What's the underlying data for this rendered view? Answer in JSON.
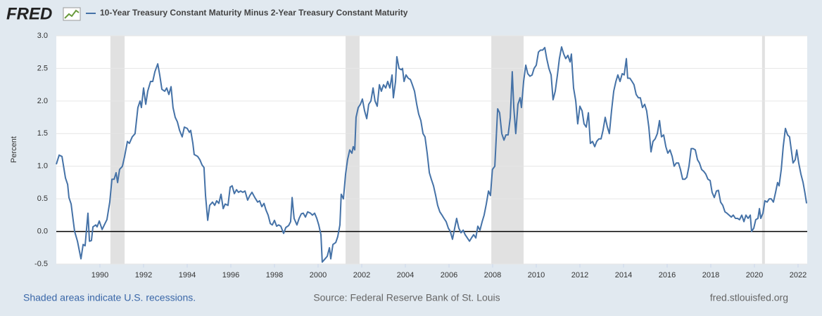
{
  "header": {
    "logo": "FRED"
  },
  "chart_data": {
    "type": "line",
    "y_label": "Percent",
    "series": [
      {
        "name": "10-Year Treasury Constant Maturity Minus 2-Year Treasury Constant Maturity",
        "color": "#4572a7",
        "values": [
          1.03,
          1.17,
          1.15,
          0.82,
          0.72,
          0.52,
          0.42,
          0.18,
          0.0,
          -0.15,
          -0.42,
          -0.2,
          -0.22,
          0.28,
          -0.15,
          -0.14,
          0.07,
          0.1,
          0.07,
          0.16,
          0.03,
          0.12,
          0.18,
          0.45,
          0.8,
          0.8,
          0.9,
          0.75,
          0.95,
          1.0,
          1.15,
          1.38,
          1.35,
          1.45,
          1.5,
          1.9,
          2.0,
          1.9,
          2.2,
          1.95,
          2.15,
          2.3,
          2.3,
          2.45,
          2.57,
          2.4,
          2.18,
          2.15,
          2.2,
          2.1,
          2.22,
          1.9,
          1.75,
          1.68,
          1.55,
          1.45,
          1.6,
          1.58,
          1.52,
          1.55,
          1.35,
          1.18,
          1.15,
          1.1,
          1.02,
          0.98,
          0.55,
          0.17,
          0.4,
          0.45,
          0.4,
          0.47,
          0.43,
          0.57,
          0.35,
          0.42,
          0.4,
          0.68,
          0.7,
          0.58,
          0.64,
          0.6,
          0.62,
          0.6,
          0.62,
          0.48,
          0.55,
          0.6,
          0.52,
          0.45,
          0.47,
          0.38,
          0.43,
          0.33,
          0.25,
          0.12,
          0.1,
          0.17,
          0.08,
          0.1,
          0.08,
          -0.03,
          0.06,
          0.09,
          0.15,
          0.52,
          0.2,
          0.1,
          0.2,
          0.27,
          0.28,
          0.22,
          0.3,
          0.28,
          0.25,
          0.28,
          0.2,
          0.1,
          -0.05,
          -0.47,
          -0.42,
          -0.38,
          -0.25,
          -0.42,
          -0.2,
          -0.17,
          -0.08,
          0.1,
          0.57,
          0.5,
          0.88,
          1.1,
          1.25,
          1.2,
          1.3,
          1.25,
          1.75,
          1.9,
          1.95,
          2.03,
          1.85,
          1.73,
          1.95,
          2.0,
          2.2,
          2.0,
          1.92,
          2.25,
          2.15,
          2.25,
          2.2,
          2.3,
          2.2,
          2.4,
          2.05,
          2.3,
          2.68,
          2.5,
          2.48,
          2.5,
          2.3,
          2.4,
          2.35,
          2.33,
          2.25,
          2.15,
          1.95,
          1.8,
          1.7,
          1.5,
          1.45,
          1.2,
          0.9,
          0.8,
          0.7,
          0.55,
          0.4,
          0.3,
          0.25,
          0.2,
          0.15,
          0.05,
          0.0,
          -0.12,
          0.05,
          0.2,
          0.05,
          -0.02,
          0.02,
          -0.05,
          -0.1,
          -0.15,
          -0.1,
          -0.05,
          -0.1,
          0.08,
          0.02,
          0.15,
          0.25,
          0.42,
          0.62,
          0.55,
          0.95,
          1.0,
          1.4,
          1.88,
          1.82,
          1.5,
          1.4,
          1.48,
          1.48,
          1.75,
          2.45,
          1.9,
          1.5,
          1.95,
          2.05,
          1.9,
          2.3,
          2.55,
          2.42,
          2.38,
          2.4,
          2.5,
          2.55,
          2.75,
          2.78,
          2.78,
          2.82,
          2.65,
          2.5,
          2.4,
          2.02,
          2.15,
          2.4,
          2.65,
          2.83,
          2.72,
          2.65,
          2.7,
          2.6,
          2.72,
          2.2,
          2.0,
          1.65,
          1.92,
          1.85,
          1.65,
          1.6,
          1.82,
          1.35,
          1.38,
          1.3,
          1.38,
          1.42,
          1.42,
          1.55,
          1.75,
          1.6,
          1.5,
          1.85,
          2.15,
          2.3,
          2.4,
          2.3,
          2.42,
          2.4,
          2.65,
          2.35,
          2.35,
          2.3,
          2.25,
          2.1,
          2.05,
          2.05,
          1.9,
          1.95,
          1.85,
          1.6,
          1.22,
          1.38,
          1.42,
          1.5,
          1.7,
          1.45,
          1.48,
          1.3,
          1.2,
          1.25,
          1.15,
          1.0,
          1.05,
          1.05,
          0.95,
          0.8,
          0.8,
          0.83,
          1.0,
          1.27,
          1.27,
          1.25,
          1.1,
          1.05,
          0.95,
          0.92,
          0.88,
          0.8,
          0.78,
          0.6,
          0.52,
          0.62,
          0.63,
          0.45,
          0.4,
          0.3,
          0.28,
          0.25,
          0.22,
          0.25,
          0.2,
          0.2,
          0.18,
          0.25,
          0.15,
          0.25,
          0.2,
          0.25,
          0.0,
          0.05,
          0.18,
          0.2,
          0.35,
          0.2,
          0.28,
          0.47,
          0.45,
          0.5,
          0.5,
          0.45,
          0.6,
          0.75,
          0.7,
          0.95,
          1.3,
          1.58,
          1.48,
          1.45,
          1.2,
          1.05,
          1.1,
          1.25,
          1.05,
          0.88,
          0.75,
          0.58,
          0.43
        ]
      }
    ],
    "x": [
      1988.0,
      1988.13,
      1988.26,
      1988.42,
      1988.52,
      1988.58,
      1988.68,
      1988.77,
      1988.84,
      1988.97,
      1989.13,
      1989.23,
      1989.32,
      1989.45,
      1989.52,
      1989.61,
      1989.68,
      1989.81,
      1989.87,
      1989.97,
      1990.1,
      1990.23,
      1990.32,
      1990.45,
      1990.55,
      1990.65,
      1990.74,
      1990.81,
      1990.9,
      1991.03,
      1991.13,
      1991.26,
      1991.35,
      1991.48,
      1991.61,
      1991.74,
      1991.84,
      1991.9,
      1992.0,
      1992.1,
      1992.19,
      1992.32,
      1992.42,
      1992.52,
      1992.65,
      1992.74,
      1992.84,
      1992.97,
      1993.06,
      1993.16,
      1993.26,
      1993.35,
      1993.45,
      1993.55,
      1993.65,
      1993.77,
      1993.87,
      1994.0,
      1994.1,
      1994.16,
      1994.26,
      1994.32,
      1994.48,
      1994.58,
      1994.68,
      1994.77,
      1994.84,
      1994.94,
      1995.03,
      1995.16,
      1995.26,
      1995.35,
      1995.45,
      1995.55,
      1995.65,
      1995.74,
      1995.87,
      1995.97,
      1996.06,
      1996.16,
      1996.26,
      1996.35,
      1996.45,
      1996.55,
      1996.65,
      1996.77,
      1996.87,
      1996.97,
      1997.1,
      1997.23,
      1997.32,
      1997.42,
      1997.52,
      1997.61,
      1997.71,
      1997.81,
      1997.9,
      1998.0,
      1998.1,
      1998.19,
      1998.29,
      1998.42,
      1998.52,
      1998.65,
      1998.74,
      1998.81,
      1998.9,
      1999.03,
      1999.13,
      1999.23,
      1999.32,
      1999.42,
      1999.52,
      1999.65,
      1999.74,
      1999.84,
      1999.94,
      2000.03,
      2000.13,
      2000.19,
      2000.32,
      2000.42,
      2000.52,
      2000.58,
      2000.68,
      2000.81,
      2000.9,
      2001.0,
      2001.06,
      2001.16,
      2001.26,
      2001.35,
      2001.45,
      2001.55,
      2001.61,
      2001.68,
      2001.74,
      2001.84,
      2001.94,
      2002.03,
      2002.13,
      2002.23,
      2002.32,
      2002.42,
      2002.52,
      2002.61,
      2002.71,
      2002.81,
      2002.9,
      2003.0,
      2003.1,
      2003.19,
      2003.29,
      2003.39,
      2003.45,
      2003.55,
      2003.61,
      2003.71,
      2003.81,
      2003.87,
      2003.94,
      2004.03,
      2004.13,
      2004.23,
      2004.32,
      2004.42,
      2004.52,
      2004.61,
      2004.71,
      2004.81,
      2004.9,
      2005.0,
      2005.1,
      2005.19,
      2005.29,
      2005.39,
      2005.48,
      2005.58,
      2005.68,
      2005.77,
      2005.87,
      2005.97,
      2006.06,
      2006.16,
      2006.26,
      2006.35,
      2006.45,
      2006.55,
      2006.65,
      2006.74,
      2006.84,
      2006.94,
      2007.03,
      2007.13,
      2007.23,
      2007.32,
      2007.42,
      2007.52,
      2007.61,
      2007.71,
      2007.81,
      2007.9,
      2007.99,
      2008.1,
      2008.16,
      2008.23,
      2008.32,
      2008.42,
      2008.52,
      2008.61,
      2008.71,
      2008.81,
      2008.9,
      2008.97,
      2009.06,
      2009.16,
      2009.26,
      2009.32,
      2009.42,
      2009.52,
      2009.61,
      2009.71,
      2009.81,
      2009.9,
      2010.0,
      2010.1,
      2010.19,
      2010.29,
      2010.39,
      2010.48,
      2010.58,
      2010.68,
      2010.77,
      2010.87,
      2010.97,
      2011.06,
      2011.16,
      2011.26,
      2011.35,
      2011.45,
      2011.55,
      2011.61,
      2011.71,
      2011.81,
      2011.9,
      2012.0,
      2012.1,
      2012.19,
      2012.29,
      2012.39,
      2012.48,
      2012.58,
      2012.68,
      2012.77,
      2012.87,
      2012.97,
      2013.06,
      2013.16,
      2013.26,
      2013.35,
      2013.45,
      2013.55,
      2013.65,
      2013.74,
      2013.84,
      2013.94,
      2014.03,
      2014.13,
      2014.19,
      2014.29,
      2014.39,
      2014.48,
      2014.58,
      2014.68,
      2014.77,
      2014.87,
      2014.97,
      2015.06,
      2015.16,
      2015.26,
      2015.35,
      2015.45,
      2015.55,
      2015.65,
      2015.74,
      2015.84,
      2015.94,
      2016.03,
      2016.13,
      2016.23,
      2016.32,
      2016.42,
      2016.52,
      2016.61,
      2016.71,
      2016.81,
      2016.9,
      2017.0,
      2017.1,
      2017.19,
      2017.29,
      2017.39,
      2017.48,
      2017.58,
      2017.68,
      2017.77,
      2017.87,
      2017.97,
      2018.06,
      2018.16,
      2018.26,
      2018.35,
      2018.45,
      2018.55,
      2018.65,
      2018.74,
      2018.84,
      2018.94,
      2019.03,
      2019.13,
      2019.23,
      2019.32,
      2019.42,
      2019.52,
      2019.61,
      2019.71,
      2019.81,
      2019.87,
      2019.97,
      2020.06,
      2020.16,
      2020.23,
      2020.29,
      2020.39,
      2020.48,
      2020.58,
      2020.68,
      2020.77,
      2020.87,
      2020.97,
      2021.06,
      2021.13,
      2021.23,
      2021.32,
      2021.42,
      2021.52,
      2021.61,
      2021.71,
      2021.77,
      2021.87,
      2021.94,
      2022.03,
      2022.13,
      2022.23,
      2022.32,
      2022.39
    ],
    "xlim": [
      1988,
      2022.42
    ],
    "xticks": [
      1990,
      1992,
      1994,
      1996,
      1998,
      2000,
      2002,
      2004,
      2006,
      2008,
      2010,
      2012,
      2014,
      2016,
      2018,
      2020,
      2022
    ],
    "ylim": [
      -0.5,
      3
    ],
    "yticks": [
      -0.5,
      {
        "value": 0,
        "label": "0.0"
      },
      0.5,
      {
        "value": 1,
        "label": "1.0"
      },
      1.5,
      {
        "value": 2,
        "label": "2.0"
      },
      2.5,
      {
        "value": 3,
        "label": "3.0"
      }
    ],
    "grid": true,
    "baseline": 0,
    "recessions": [
      [
        1990.48,
        1991.13
      ],
      [
        2001.26,
        2001.9
      ],
      [
        2007.94,
        2009.42
      ],
      [
        2020.35,
        2020.48
      ]
    ],
    "recession_color": "#e1e1e1"
  },
  "footer": {
    "note": "Shaded areas indicate U.S. recessions.",
    "source": "Source: Federal Reserve Bank of St. Louis",
    "url": "fred.stlouisfed.org"
  }
}
